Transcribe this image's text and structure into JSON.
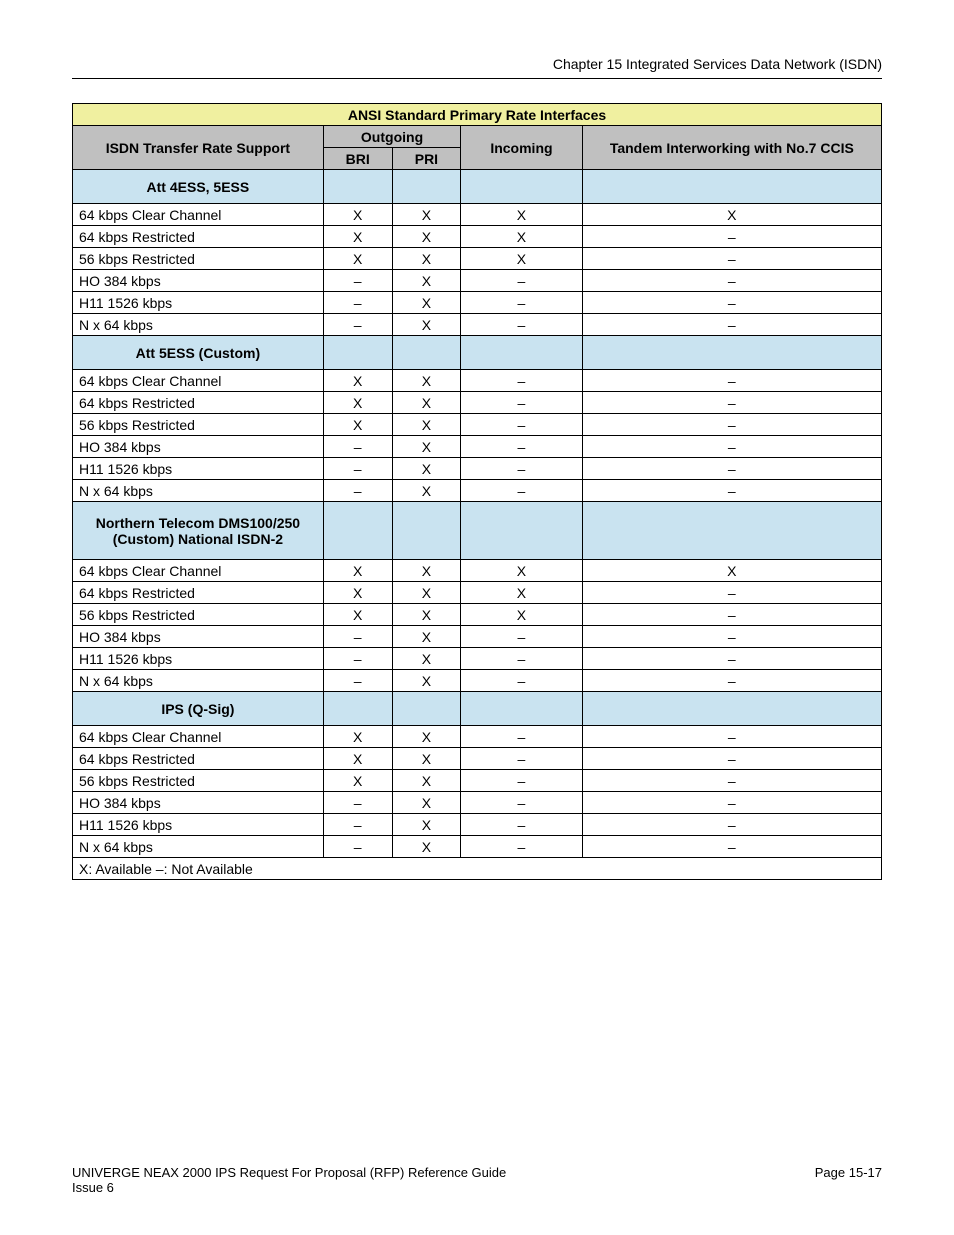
{
  "header": {
    "chapter": "Chapter 15   Integrated Services Data Network (ISDN)"
  },
  "table": {
    "title": "ANSI Standard Primary Rate Interfaces",
    "header_top": {
      "transfer_rate": "ISDN Transfer Rate Support",
      "outgoing": "Outgoing",
      "incoming": "Incoming",
      "tandem": "Tandem Interworking with No.7 CCIS"
    },
    "header_sub": {
      "bri": "BRI",
      "pri": "PRI"
    },
    "sections": [
      {
        "section_header": {
          "label": "Att 4ESS, 5ESS",
          "col1": "",
          "col2": "",
          "col3": "",
          "col4": ""
        },
        "rows": [
          {
            "label": "64 kbps Clear Channel",
            "cols": [
              "X",
              "X",
              "X",
              "X"
            ]
          },
          {
            "label": "64 kbps Restricted",
            "cols": [
              "X",
              "X",
              "X",
              "–"
            ]
          },
          {
            "label": "56 kbps Restricted",
            "cols": [
              "X",
              "X",
              "X",
              "–"
            ]
          },
          {
            "label": "HO 384 kbps",
            "cols": [
              "–",
              "X",
              "–",
              "–"
            ]
          },
          {
            "label": "H11 1526 kbps",
            "cols": [
              "–",
              "X",
              "–",
              "–"
            ]
          },
          {
            "label": "N x 64 kbps",
            "cols": [
              "–",
              "X",
              "–",
              "–"
            ]
          }
        ]
      },
      {
        "section_header": {
          "label": "Att 5ESS (Custom)",
          "col1": "",
          "col2": "",
          "col3": "",
          "col4": ""
        },
        "rows": [
          {
            "label": "64 kbps Clear Channel",
            "cols": [
              "X",
              "X",
              "–",
              "–"
            ]
          },
          {
            "label": "64 kbps Restricted",
            "cols": [
              "X",
              "X",
              "–",
              "–"
            ]
          },
          {
            "label": "56 kbps Restricted",
            "cols": [
              "X",
              "X",
              "–",
              "–"
            ]
          },
          {
            "label": "HO 384 kbps",
            "cols": [
              "–",
              "X",
              "–",
              "–"
            ]
          },
          {
            "label": "H11 1526 kbps",
            "cols": [
              "–",
              "X",
              "–",
              "–"
            ]
          },
          {
            "label": "N x 64 kbps",
            "cols": [
              "–",
              "X",
              "–",
              "–"
            ]
          }
        ]
      },
      {
        "section_header": {
          "label": "Northern Telecom DMS100/250 (Custom) National ISDN-2",
          "col1": "",
          "col2": "",
          "col3": "",
          "col4": ""
        },
        "rows": [
          {
            "label": "64 kbps Clear Channel",
            "cols": [
              "X",
              "X",
              "X",
              "X"
            ]
          },
          {
            "label": "64 kbps Restricted",
            "cols": [
              "X",
              "X",
              "X",
              "–"
            ]
          },
          {
            "label": "56 kbps Restricted",
            "cols": [
              "X",
              "X",
              "X",
              "–"
            ]
          },
          {
            "label": "HO 384 kbps",
            "cols": [
              "–",
              "X",
              "–",
              "–"
            ]
          },
          {
            "label": "H11 1526 kbps",
            "cols": [
              "–",
              "X",
              "–",
              "–"
            ]
          },
          {
            "label": "N x 64 kbps",
            "cols": [
              "–",
              "X",
              "–",
              "–"
            ]
          }
        ]
      },
      {
        "section_header": {
          "label": "IPS (Q-Sig)",
          "col1": "",
          "col2": "",
          "col3": "",
          "col4": ""
        },
        "rows": [
          {
            "label": "64 kbps Clear Channel",
            "cols": [
              "X",
              "X",
              "–",
              "–"
            ]
          },
          {
            "label": "64 kbps Restricted",
            "cols": [
              "X",
              "X",
              "–",
              "–"
            ]
          },
          {
            "label": "56 kbps Restricted",
            "cols": [
              "X",
              "X",
              "–",
              "–"
            ]
          },
          {
            "label": "HO 384 kbps",
            "cols": [
              "–",
              "X",
              "–",
              "–"
            ]
          },
          {
            "label": "H11 1526 kbps",
            "cols": [
              "–",
              "X",
              "–",
              "–"
            ]
          },
          {
            "label": "N x 64 kbps",
            "cols": [
              "–",
              "X",
              "–",
              "–"
            ]
          }
        ]
      }
    ],
    "note": "X: Available     –: Not Available"
  },
  "footer": {
    "left_line1_a": "UNIVERGE",
    "left_line1_b": " NEAX",
    "left_line1_c": " 2000 IPS Request For Proposal (RFP) Reference Guide",
    "left_line2": "Issue 6",
    "right": "Page 15-17"
  },
  "colors": {
    "title_bg": "#f0f0a0",
    "gray_bg": "#c0c0c0",
    "blue_bg": "#c9e3f0",
    "border": "#000000",
    "text": "#000000"
  },
  "fonts": {
    "body_size_pt": 10.5,
    "family": "Arial"
  }
}
